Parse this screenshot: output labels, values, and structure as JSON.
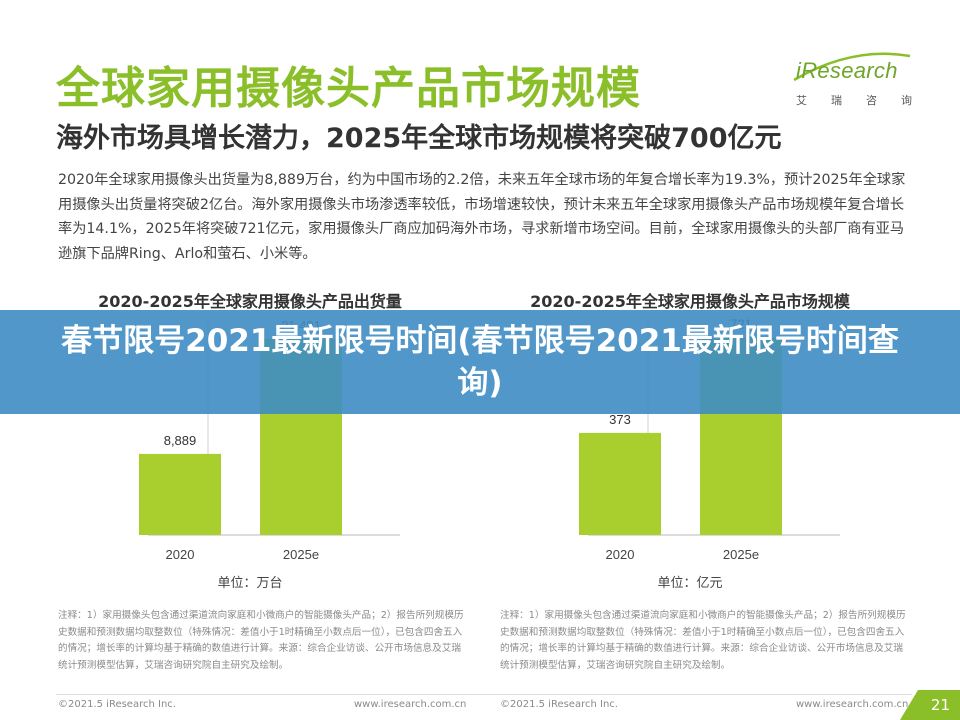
{
  "page": {
    "title": "全球家用摄像头产品市场规模",
    "subtitle": "海外市场具增长潜力，2025年全球市场规模将突破700亿元",
    "intro": "2020年全球家用摄像头出货量为8,889万台，约为中国市场的2.2倍，未来五年全球市场的年复合增长率为19.3%，预计2025年全球家用摄像头出货量将突破2亿台。海外家用摄像头市场渗透率较低，市场增速较快，预计未来五年全球家用摄像头产品市场规模年复合增长率为14.1%，2025年将突破721亿元，家用摄像头厂商应加码海外市场，寻求新增市场空间。目前，全球家用摄像头的头部厂商有亚马逊旗下品牌Ring、Arlo和萤石、小米等。"
  },
  "logo": {
    "word": "iResearch",
    "cn": [
      "艾",
      "瑞",
      "咨",
      "询"
    ],
    "color": "#6fa52b"
  },
  "colors": {
    "accent": "#8bbf2a",
    "bar": "#a8cf2e",
    "banner": "#3e8cc4"
  },
  "banner": {
    "text": "春节限号2021最新限号时间(春节限号2021最新限号时间查询)"
  },
  "chart_data": [
    {
      "type": "bar",
      "title": "2020-2025年全球家用摄像头产品出货量",
      "categories": [
        "2020",
        "2025e"
      ],
      "values": [
        8889,
        21491
      ],
      "value_labels": [
        "8,889",
        "21,491"
      ],
      "unit_label": "单位：万台",
      "ylim": [
        0,
        24000
      ],
      "grid": false
    },
    {
      "type": "bar",
      "title": "2020-2025年全球家用摄像头产品市场规模",
      "categories": [
        "2020",
        "2025e"
      ],
      "values": [
        373,
        721
      ],
      "value_labels": [
        "373",
        "721"
      ],
      "unit_label": "单位：亿元",
      "ylim": [
        0,
        800
      ],
      "grid": false
    }
  ],
  "notes": {
    "left": "注释：1）家用摄像头包含通过渠道流向家庭和小微商户的智能摄像头产品；2）报告所列规模历史数据和预测数据均取整数位（特殊情况：差值小于1时精确至小数点后一位），已包含四舍五入的情况；增长率的计算均基于精确的数值进行计算。来源：综合企业访谈、公开市场信息及艾瑞统计预测模型估算，艾瑞咨询研究院自主研究及绘制。",
    "right": "注释：1）家用摄像头包含通过渠道流向家庭和小微商户的智能摄像头产品；2）报告所列规模历史数据和预测数据均取整数位（特殊情况：差值小于1时精确至小数点后一位），已包含四舍五入的情况；增长率的计算均基于精确的数值进行计算。来源：综合企业访谈、公开市场信息及艾瑞统计预测模型估算，艾瑞咨询研究院自主研究及绘制。"
  },
  "footer": {
    "copyright_left": "©2021.5 iResearch Inc.",
    "url_left": "www.iresearch.com.cn",
    "copyright_right": "©2021.5 iResearch Inc.",
    "url_right": "www.iresearch.com.cn",
    "page_number": "21"
  }
}
